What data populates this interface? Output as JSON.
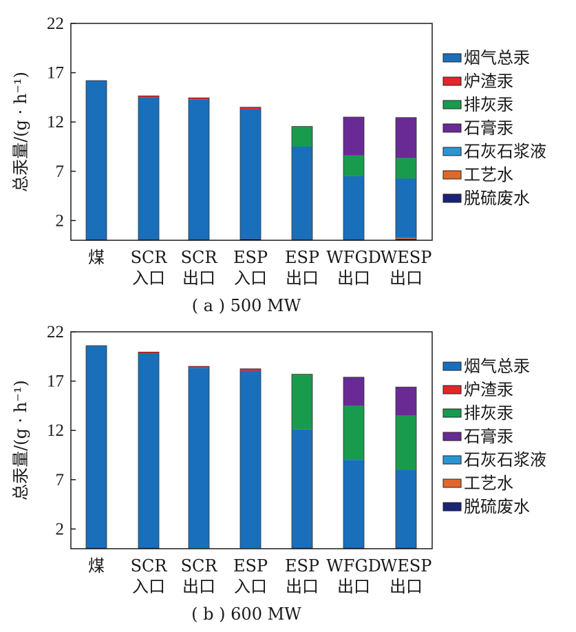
{
  "legend": [
    {
      "name": "烟气总汞",
      "color": "#1a6fba"
    },
    {
      "name": "炉渣汞",
      "color": "#e3262a"
    },
    {
      "name": "排灰汞",
      "color": "#189b4c"
    },
    {
      "name": "石膏汞",
      "color": "#6a2a96"
    },
    {
      "name": "石灰石浆液",
      "color": "#2a95d5"
    },
    {
      "name": "工艺水",
      "color": "#e0682a"
    },
    {
      "name": "脱硫废水",
      "color": "#1b2377"
    }
  ],
  "categories": [
    {
      "line1": "煤",
      "line2": ""
    },
    {
      "line1": "SCR",
      "line2": "入口"
    },
    {
      "line1": "SCR",
      "line2": "出口"
    },
    {
      "line1": "ESP",
      "line2": "入口"
    },
    {
      "line1": "ESP",
      "line2": "出口"
    },
    {
      "line1": "WFGD",
      "line2": "出口"
    },
    {
      "line1": "WESP",
      "line2": "出口"
    }
  ],
  "chart_data": [
    {
      "type": "bar",
      "stacked": true,
      "caption": "( a ) 500 MW",
      "ylabel": "总汞量/(g · h⁻¹)",
      "ylim": [
        0,
        22
      ],
      "yticks": [
        2,
        7,
        12,
        17,
        22
      ],
      "categories": [
        "煤",
        "SCR入口",
        "SCR出口",
        "ESP入口",
        "ESP出口",
        "WFGD出口",
        "WESP出口"
      ],
      "series": [
        {
          "name": "脱硫废水",
          "values": [
            0.1,
            0.1,
            0.1,
            0.15,
            0.1,
            0.1,
            0.15
          ]
        },
        {
          "name": "工艺水",
          "values": [
            0,
            0,
            0,
            0,
            0,
            0,
            0.1
          ]
        },
        {
          "name": "石灰石浆液",
          "values": [
            0,
            0,
            0,
            0,
            0,
            0,
            0
          ]
        },
        {
          "name": "烟气总汞",
          "values": [
            16.1,
            14.4,
            14.2,
            13.15,
            9.4,
            6.4,
            6.0
          ]
        },
        {
          "name": "排灰汞",
          "values": [
            0,
            0,
            0,
            0,
            2.05,
            2.1,
            2.1
          ]
        },
        {
          "name": "石膏汞",
          "values": [
            0,
            0,
            0,
            0,
            0,
            3.9,
            4.1
          ]
        },
        {
          "name": "炉渣汞",
          "values": [
            0,
            0.15,
            0.15,
            0.2,
            0,
            0,
            0
          ]
        }
      ]
    },
    {
      "type": "bar",
      "stacked": true,
      "caption": "( b ) 600 MW",
      "ylabel": "总汞量/(g · h⁻¹)",
      "ylim": [
        0,
        22
      ],
      "yticks": [
        2,
        7,
        12,
        17,
        22
      ],
      "categories": [
        "煤",
        "SCR入口",
        "SCR出口",
        "ESP入口",
        "ESP出口",
        "WFGD出口",
        "WESP出口"
      ],
      "series": [
        {
          "name": "脱硫废水",
          "values": [
            0.1,
            0.1,
            0.05,
            0.05,
            0.1,
            0.1,
            0.1
          ]
        },
        {
          "name": "工艺水",
          "values": [
            0,
            0,
            0,
            0,
            0,
            0,
            0
          ]
        },
        {
          "name": "石灰石浆液",
          "values": [
            0,
            0,
            0,
            0,
            0,
            0,
            0
          ]
        },
        {
          "name": "烟气总汞",
          "values": [
            20.5,
            19.7,
            18.3,
            18.0,
            12.0,
            8.9,
            7.9
          ]
        },
        {
          "name": "排灰汞",
          "values": [
            0,
            0,
            0,
            0,
            5.6,
            5.5,
            5.5
          ]
        },
        {
          "name": "石膏汞",
          "values": [
            0,
            0,
            0,
            0,
            0,
            2.9,
            2.9
          ]
        },
        {
          "name": "炉渣汞",
          "values": [
            0,
            0.15,
            0.15,
            0.2,
            0,
            0,
            0
          ]
        }
      ]
    }
  ]
}
